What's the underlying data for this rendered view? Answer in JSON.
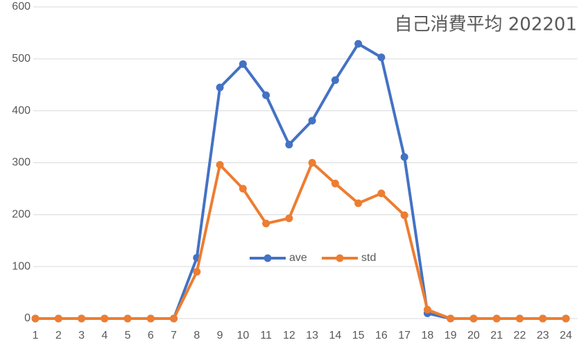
{
  "chart_data": {
    "type": "line",
    "title": "自己消費平均  202201",
    "categories": [
      "1",
      "2",
      "3",
      "4",
      "5",
      "6",
      "7",
      "8",
      "9",
      "10",
      "11",
      "12",
      "13",
      "14",
      "15",
      "16",
      "17",
      "18",
      "19",
      "20",
      "21",
      "22",
      "23",
      "24"
    ],
    "series": [
      {
        "name": "ave",
        "color": "#4472c4",
        "values": [
          0,
          0,
          0,
          0,
          0,
          0,
          0,
          117,
          445,
          490,
          430,
          335,
          381,
          459,
          529,
          503,
          311,
          10,
          0,
          0,
          0,
          0,
          0,
          0
        ]
      },
      {
        "name": "std",
        "color": "#ed7d31",
        "values": [
          0,
          0,
          0,
          0,
          0,
          0,
          0,
          90,
          296,
          250,
          183,
          193,
          300,
          260,
          222,
          241,
          199,
          17,
          0,
          0,
          0,
          0,
          0,
          0
        ]
      }
    ],
    "ylim": [
      0,
      600
    ],
    "yticks": [
      0,
      100,
      200,
      300,
      400,
      500,
      600
    ],
    "grid": true
  }
}
